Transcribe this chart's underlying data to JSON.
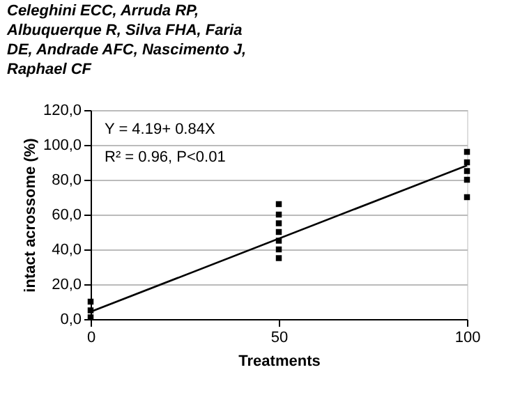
{
  "chart_data": {
    "type": "scatter",
    "title": "Celeghini ECC, Arruda RP,\nAlbuquerque R, Silva FHA, Faria\nDE, Andrade AFC, Nascimento J,\nRaphael CF",
    "xlabel": "Treatments",
    "ylabel": "intact acrossome (%)",
    "series": [
      {
        "type": "scatter",
        "color": "#000000",
        "marker": "square",
        "x": [
          0,
          0,
          0,
          50,
          50,
          50,
          50,
          50,
          50,
          50,
          100,
          100,
          100,
          100,
          100
        ],
        "values": [
          1,
          5,
          10,
          35,
          40,
          45,
          50,
          55,
          60,
          66,
          70,
          80,
          85,
          90,
          96
        ]
      },
      {
        "type": "line",
        "color": "#000000",
        "x": [
          0,
          100
        ],
        "values": [
          4.2,
          88.2
        ]
      }
    ],
    "annotations": [
      "Y = 4.19+ 0.84X",
      "R² = 0.96, P<0.01"
    ],
    "xlim": [
      0,
      100
    ],
    "xticks": [
      0,
      50,
      100
    ],
    "ylim": [
      0,
      120
    ],
    "yticks": [
      {
        "value": 0,
        "label": "0,0"
      },
      {
        "value": 20,
        "label": "20,0"
      },
      {
        "value": 40,
        "label": "40,0"
      },
      {
        "value": 60,
        "label": "60,0"
      },
      {
        "value": 80,
        "label": "80,0"
      },
      {
        "value": 100,
        "label": "100,0"
      },
      {
        "value": 120,
        "label": "120,0"
      }
    ],
    "grid": "y"
  }
}
